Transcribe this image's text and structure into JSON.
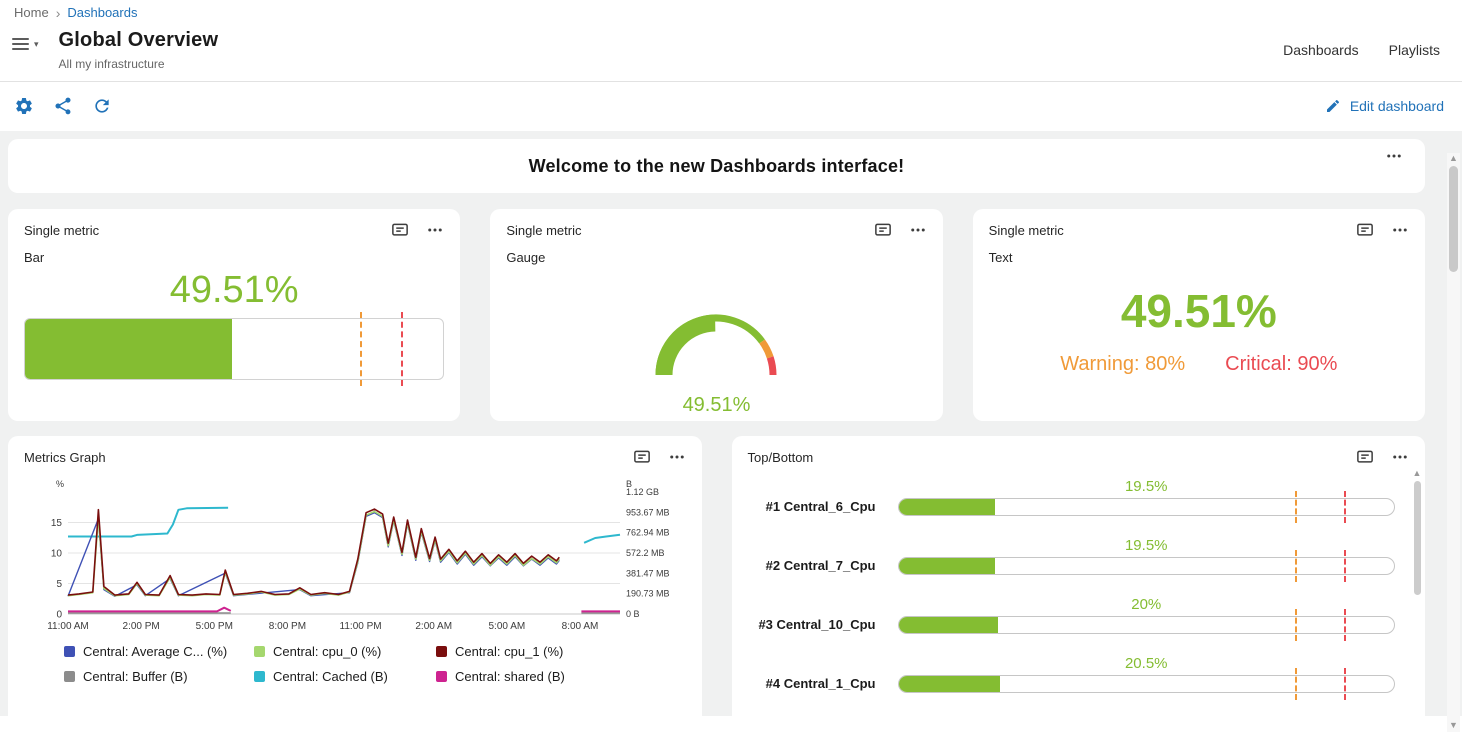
{
  "breadcrumb": {
    "home": "Home",
    "current": "Dashboards"
  },
  "header": {
    "title": "Global Overview",
    "subtitle": "All my infrastructure",
    "nav": [
      {
        "label": "Dashboards"
      },
      {
        "label": "Playlists"
      }
    ]
  },
  "toolbar": {
    "icons": [
      "settings-icon",
      "share-icon",
      "refresh-icon"
    ],
    "edit_label": "Edit dashboard"
  },
  "welcome": {
    "text": "Welcome to the new Dashboards interface!"
  },
  "colors": {
    "green": "#84BD32",
    "orange": "#F09A38",
    "red": "#EA4B52",
    "blue": "#2172B8"
  },
  "panels": {
    "bar": {
      "title": "Single metric",
      "subtitle": "Bar",
      "value": "49.51%"
    },
    "gauge": {
      "title": "Single metric",
      "subtitle": "Gauge",
      "value": "49.51%"
    },
    "text": {
      "title": "Single metric",
      "subtitle": "Text",
      "value": "49.51%",
      "warning_label": "Warning: 80%",
      "critical_label": "Critical: 90%"
    },
    "metrics_graph": {
      "title": "Metrics Graph"
    },
    "top_bottom": {
      "title": "Top/Bottom"
    }
  },
  "chart_data": [
    {
      "id": "single-metric-bar",
      "type": "bar",
      "title": "Single metric - Bar",
      "value": 49.51,
      "unit": "%",
      "display": "49.51%",
      "warning": 80,
      "critical": 90,
      "range": [
        0,
        100
      ]
    },
    {
      "id": "single-metric-gauge",
      "type": "gauge",
      "title": "Single metric - Gauge",
      "value": 49.51,
      "unit": "%",
      "display": "49.51%",
      "warning": 80,
      "critical": 90,
      "range": [
        0,
        100
      ]
    },
    {
      "id": "single-metric-text",
      "type": "text",
      "title": "Single metric - Text",
      "value": 49.51,
      "unit": "%",
      "display": "49.51%",
      "warning": 80,
      "critical": 90
    },
    {
      "id": "metrics-graph",
      "type": "line",
      "title": "Metrics Graph",
      "x_ticks": [
        "11:00 AM",
        "2:00 PM",
        "5:00 PM",
        "8:00 PM",
        "11:00 PM",
        "2:00 AM",
        "5:00 AM",
        "8:00 AM"
      ],
      "left_axis": {
        "label": "%",
        "ticks": [
          "0",
          "5",
          "10",
          "15"
        ],
        "max": 20
      },
      "right_axis": {
        "label": "B",
        "ticks": [
          "0 B",
          "190.73 MB",
          "381.47 MB",
          "572.2 MB",
          "762.94 MB",
          "953.67 MB",
          "1.12 GB"
        ],
        "max": 1200
      },
      "legend_position": "bottom",
      "series": [
        {
          "name": "Central: Average C... (%)",
          "color": "#3F51B5",
          "axis": "left",
          "layer": 3,
          "width": 1.4,
          "segments": [
            [
              [
                0,
                2.9
              ],
              [
                0.055,
                15.6
              ],
              [
                0.065,
                4.0
              ],
              [
                0.085,
                2.9
              ],
              [
                0.125,
                4.8
              ],
              [
                0.14,
                3.0
              ],
              [
                0.185,
                5.8
              ],
              [
                0.2,
                3.0
              ],
              [
                0.285,
                6.7
              ],
              [
                0.3,
                3.0
              ],
              [
                0.42,
                4.0
              ],
              [
                0.44,
                3.0
              ],
              [
                0.51,
                3.5
              ],
              [
                0.525,
                8.4
              ],
              [
                0.54,
                16.0
              ],
              [
                0.555,
                16.6
              ],
              [
                0.57,
                15.8
              ],
              [
                0.58,
                11.0
              ],
              [
                0.59,
                15.3
              ],
              [
                0.605,
                9.6
              ],
              [
                0.615,
                14.8
              ],
              [
                0.63,
                8.8
              ],
              [
                0.64,
                13.4
              ],
              [
                0.655,
                8.6
              ],
              [
                0.665,
                12.0
              ],
              [
                0.675,
                8.5
              ],
              [
                0.69,
                10.1
              ],
              [
                0.705,
                8.2
              ],
              [
                0.72,
                9.8
              ],
              [
                0.735,
                8.0
              ],
              [
                0.75,
                9.4
              ],
              [
                0.765,
                7.9
              ],
              [
                0.78,
                9.2
              ],
              [
                0.795,
                8.0
              ],
              [
                0.81,
                9.4
              ],
              [
                0.825,
                7.9
              ],
              [
                0.84,
                9.0
              ],
              [
                0.855,
                8.0
              ],
              [
                0.87,
                9.2
              ],
              [
                0.885,
                8.2
              ],
              [
                0.89,
                8.8
              ]
            ]
          ]
        },
        {
          "name": "Central: cpu_0 (%)",
          "color": "#A5D76E",
          "axis": "left",
          "layer": 4,
          "width": 1.6,
          "segments": [
            [
              [
                0,
                3.0
              ],
              [
                0.02,
                3.2
              ],
              [
                0.045,
                3.5
              ],
              [
                0.055,
                15.9
              ],
              [
                0.065,
                4.2
              ],
              [
                0.085,
                3.0
              ],
              [
                0.11,
                3.2
              ],
              [
                0.125,
                5.0
              ],
              [
                0.14,
                3.1
              ],
              [
                0.165,
                3.0
              ],
              [
                0.185,
                6.0
              ],
              [
                0.2,
                3.1
              ],
              [
                0.225,
                3.0
              ],
              [
                0.25,
                3.2
              ],
              [
                0.275,
                3.1
              ],
              [
                0.285,
                6.9
              ],
              [
                0.3,
                3.1
              ],
              [
                0.325,
                3.3
              ],
              [
                0.35,
                3.6
              ],
              [
                0.375,
                3.1
              ],
              [
                0.4,
                3.2
              ],
              [
                0.42,
                4.1
              ],
              [
                0.44,
                3.1
              ],
              [
                0.465,
                3.4
              ],
              [
                0.49,
                3.1
              ],
              [
                0.51,
                3.6
              ],
              [
                0.525,
                8.6
              ],
              [
                0.54,
                16.2
              ],
              [
                0.555,
                16.8
              ],
              [
                0.57,
                16.0
              ],
              [
                0.58,
                11.2
              ],
              [
                0.59,
                15.5
              ],
              [
                0.605,
                9.8
              ],
              [
                0.615,
                15.0
              ],
              [
                0.63,
                9.0
              ],
              [
                0.64,
                13.6
              ],
              [
                0.655,
                8.8
              ],
              [
                0.665,
                12.2
              ],
              [
                0.675,
                8.7
              ],
              [
                0.69,
                10.3
              ],
              [
                0.705,
                8.4
              ],
              [
                0.72,
                10.0
              ],
              [
                0.735,
                8.2
              ],
              [
                0.75,
                9.6
              ],
              [
                0.765,
                8.0
              ],
              [
                0.78,
                9.4
              ],
              [
                0.795,
                8.2
              ],
              [
                0.81,
                9.6
              ],
              [
                0.825,
                8.0
              ],
              [
                0.84,
                9.1
              ],
              [
                0.855,
                8.2
              ],
              [
                0.87,
                9.4
              ],
              [
                0.885,
                8.4
              ],
              [
                0.89,
                9.0
              ]
            ]
          ]
        },
        {
          "name": "Central: cpu_1 (%)",
          "color": "#7A0E0E",
          "axis": "left",
          "layer": 5,
          "width": 1.6,
          "segments": [
            [
              [
                0,
                3.1
              ],
              [
                0.02,
                3.3
              ],
              [
                0.045,
                3.6
              ],
              [
                0.055,
                17.1
              ],
              [
                0.065,
                4.5
              ],
              [
                0.085,
                3.1
              ],
              [
                0.11,
                3.3
              ],
              [
                0.125,
                5.2
              ],
              [
                0.14,
                3.2
              ],
              [
                0.165,
                3.1
              ],
              [
                0.185,
                6.3
              ],
              [
                0.2,
                3.2
              ],
              [
                0.225,
                3.1
              ],
              [
                0.25,
                3.3
              ],
              [
                0.275,
                3.2
              ],
              [
                0.285,
                7.2
              ],
              [
                0.3,
                3.2
              ],
              [
                0.325,
                3.4
              ],
              [
                0.35,
                3.7
              ],
              [
                0.375,
                3.2
              ],
              [
                0.4,
                3.3
              ],
              [
                0.42,
                4.3
              ],
              [
                0.44,
                3.2
              ],
              [
                0.465,
                3.5
              ],
              [
                0.49,
                3.2
              ],
              [
                0.51,
                3.7
              ],
              [
                0.525,
                9.0
              ],
              [
                0.54,
                16.6
              ],
              [
                0.555,
                17.2
              ],
              [
                0.57,
                16.4
              ],
              [
                0.58,
                11.6
              ],
              [
                0.59,
                15.9
              ],
              [
                0.605,
                10.1
              ],
              [
                0.615,
                15.4
              ],
              [
                0.63,
                9.3
              ],
              [
                0.64,
                14.0
              ],
              [
                0.655,
                9.1
              ],
              [
                0.665,
                12.6
              ],
              [
                0.675,
                9.0
              ],
              [
                0.69,
                10.6
              ],
              [
                0.705,
                8.7
              ],
              [
                0.72,
                10.3
              ],
              [
                0.735,
                8.5
              ],
              [
                0.75,
                9.9
              ],
              [
                0.765,
                8.3
              ],
              [
                0.78,
                9.7
              ],
              [
                0.795,
                8.5
              ],
              [
                0.81,
                9.9
              ],
              [
                0.825,
                8.3
              ],
              [
                0.84,
                9.5
              ],
              [
                0.855,
                8.5
              ],
              [
                0.87,
                9.7
              ],
              [
                0.885,
                8.7
              ],
              [
                0.89,
                9.3
              ]
            ]
          ]
        },
        {
          "name": "Central: Buffer (B)",
          "color": "#8C8C8C",
          "axis": "right",
          "layer": 0,
          "width": 1.6,
          "segments": [
            [
              [
                0,
                10
              ],
              [
                0.295,
                10
              ]
            ],
            [
              [
                0.93,
                10
              ],
              [
                1,
                10
              ]
            ]
          ]
        },
        {
          "name": "Central: Cached (B)",
          "color": "#2EB8CE",
          "axis": "right",
          "layer": 1,
          "width": 2,
          "segments": [
            [
              [
                0,
                762
              ],
              [
                0.115,
                762
              ],
              [
                0.125,
                778
              ],
              [
                0.18,
                792
              ],
              [
                0.19,
                880
              ],
              [
                0.2,
                1025
              ],
              [
                0.215,
                1040
              ],
              [
                0.29,
                1045
              ]
            ],
            [
              [
                0.935,
                700
              ],
              [
                0.955,
                748
              ],
              [
                0.975,
                762
              ],
              [
                1,
                780
              ]
            ]
          ]
        },
        {
          "name": "Central: shared (B)",
          "color": "#CE2390",
          "axis": "right",
          "layer": 2,
          "width": 2,
          "segments": [
            [
              [
                0,
                26
              ],
              [
                0.27,
                26
              ],
              [
                0.283,
                62
              ],
              [
                0.295,
                30
              ]
            ],
            [
              [
                0.93,
                26
              ],
              [
                1,
                26
              ]
            ]
          ]
        }
      ]
    },
    {
      "id": "top-bottom",
      "type": "bar",
      "title": "Top/Bottom",
      "warning": 80,
      "critical": 90,
      "range": [
        0,
        100
      ],
      "rows": [
        {
          "label": "#1 Central_6_Cpu",
          "value": 19.5,
          "display": "19.5%"
        },
        {
          "label": "#2 Central_7_Cpu",
          "value": 19.5,
          "display": "19.5%"
        },
        {
          "label": "#3 Central_10_Cpu",
          "value": 20,
          "display": "20%"
        },
        {
          "label": "#4 Central_1_Cpu",
          "value": 20.5,
          "display": "20.5%"
        }
      ]
    }
  ]
}
